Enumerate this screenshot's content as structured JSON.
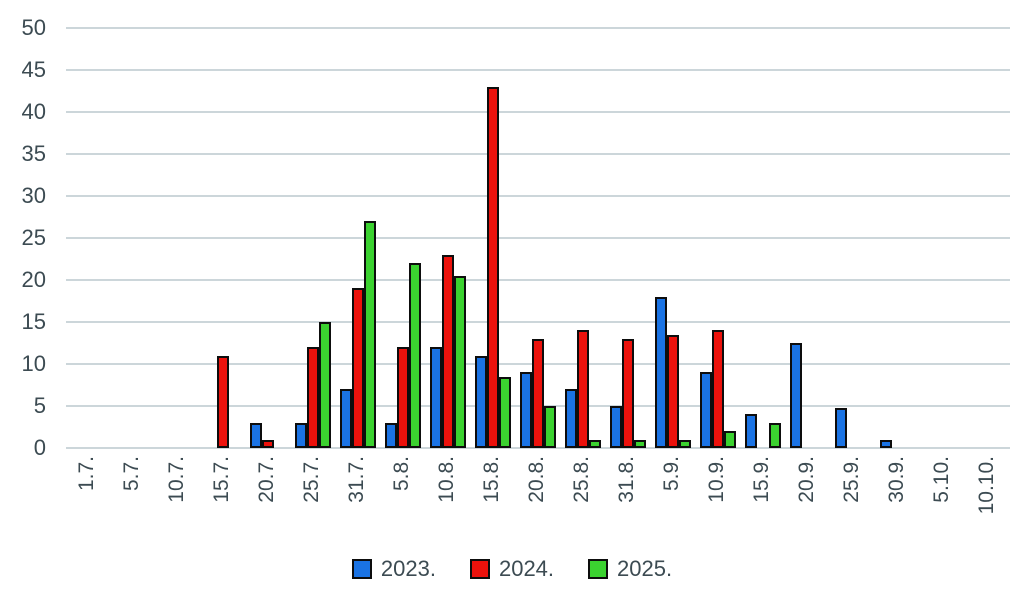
{
  "chart_data": {
    "type": "bar",
    "title": "",
    "xlabel": "",
    "ylabel": "",
    "categories": [
      "1.7.",
      "5.7.",
      "10.7.",
      "15.7.",
      "20.7.",
      "25.7.",
      "31.7.",
      "5.8.",
      "10.8.",
      "15.8.",
      "20.8.",
      "25.8.",
      "31.8.",
      "5.9.",
      "10.9.",
      "15.9.",
      "20.9.",
      "25.9.",
      "30.9.",
      "5.10.",
      "10.10."
    ],
    "series": [
      {
        "name": "2023.",
        "color": "#1a73e4",
        "values": [
          0,
          0,
          0,
          0,
          3,
          3,
          7,
          3,
          12,
          11,
          9,
          7,
          5,
          18,
          9,
          4,
          12.5,
          4.8,
          1,
          0,
          0
        ]
      },
      {
        "name": "2024.",
        "color": "#ec120c",
        "values": [
          0,
          0,
          0,
          11,
          1,
          12,
          19,
          12,
          23,
          43,
          13,
          14,
          13,
          13.5,
          14,
          0,
          0,
          0,
          0,
          0,
          0
        ]
      },
      {
        "name": "2025.",
        "color": "#3bd230",
        "values": [
          0,
          0,
          0,
          0,
          0,
          15,
          27,
          22,
          20.5,
          8.5,
          5,
          1,
          1,
          1,
          2,
          3,
          0,
          0,
          0,
          0,
          0
        ]
      }
    ],
    "ylim": [
      0,
      50
    ],
    "yticks": [
      0,
      5,
      10,
      15,
      20,
      25,
      30,
      35,
      40,
      45,
      50
    ],
    "grid": true,
    "legend_position": "bottom",
    "colors": {
      "gridline": "#ccd6da",
      "axis_text": "#3c4b52",
      "bar_border": "#0d0d0d",
      "background": "#ffffff"
    }
  }
}
